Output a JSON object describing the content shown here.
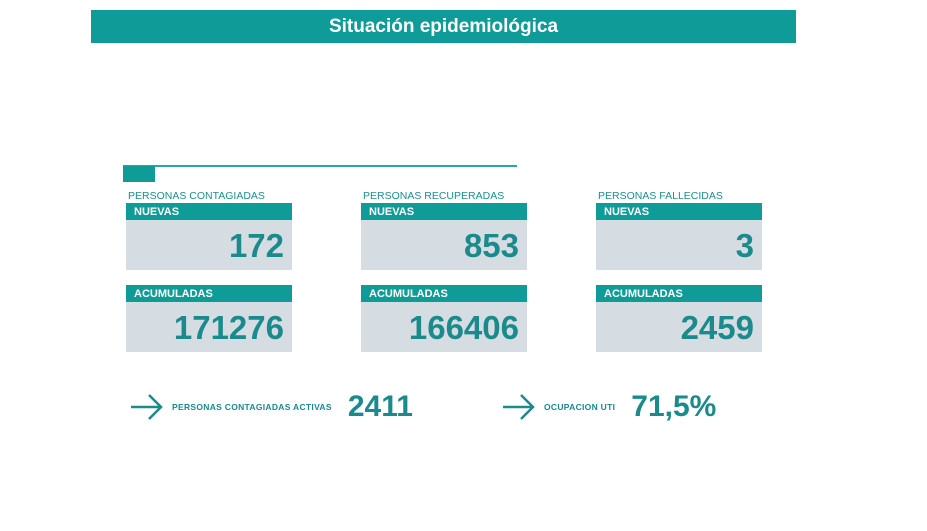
{
  "title": "Situación epidemiológica",
  "groups": [
    {
      "label": "PERSONAS CONTAGIADAS",
      "nuevas_label": "NUEVAS",
      "nuevas": "172",
      "acum_label": "ACUMULADAS",
      "acumuladas": "171276"
    },
    {
      "label": "PERSONAS RECUPERADAS",
      "nuevas_label": "NUEVAS",
      "nuevas": "853",
      "acum_label": "ACUMULADAS",
      "acumuladas": "166406"
    },
    {
      "label": "PERSONAS FALLECIDAS",
      "nuevas_label": "NUEVAS",
      "nuevas": "3",
      "acum_label": "ACUMULADAS",
      "acumuladas": "2459"
    }
  ],
  "activas": {
    "label": "PERSONAS CONTAGIADAS ACTIVAS",
    "value": "2411"
  },
  "uti": {
    "label": "OCUPACION UTI",
    "value": "71,5%"
  },
  "colors": {
    "accent": "#0f9b98",
    "box": "#d5dde3",
    "number": "#1a8a8d"
  }
}
